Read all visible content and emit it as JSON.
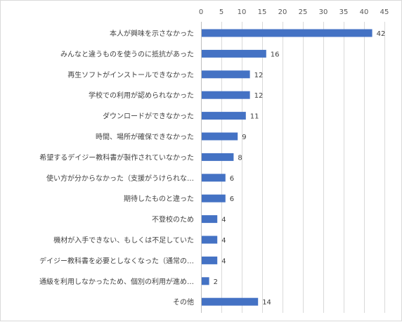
{
  "chart_data": {
    "type": "bar",
    "orientation": "horizontal",
    "title": "",
    "xlabel": "",
    "ylabel": "",
    "xlim": [
      0,
      45
    ],
    "xticks": [
      0,
      5,
      10,
      15,
      20,
      25,
      30,
      35,
      40,
      45
    ],
    "axis_position": "top",
    "grid": true,
    "bar_color": "#4472C4",
    "categories": [
      "本人が興味を示さなかった",
      "みんなと違うものを使うのに抵抗があった",
      "再生ソフトがインストールできなかった",
      "学校での利用が認められなかった",
      "ダウンロードができなかった",
      "時間、場所が確保できなかった",
      "希望するデイジー教科書が製作されていなかった",
      "使い方が分からなかった（支援がうけられな…",
      "期待したものと違った",
      "不登校のため",
      "機材が入手できない、もしくは不足していた",
      "デイジー教科書を必要としなくなった（通常の…",
      "通級を利用しなかったため、個別の利用が進め…",
      "その他"
    ],
    "values": [
      42,
      16,
      12,
      12,
      11,
      9,
      8,
      6,
      6,
      4,
      4,
      4,
      2,
      14
    ]
  }
}
